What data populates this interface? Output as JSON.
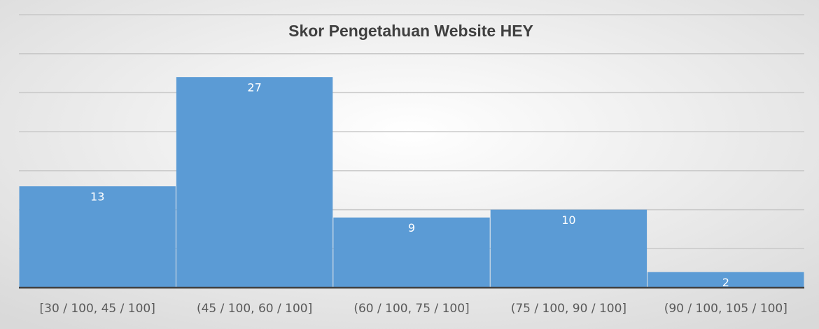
{
  "chart_data": {
    "type": "bar",
    "title": "Skor Pengetahuan Website HEY",
    "categories": [
      "[30 / 100, 45 / 100]",
      "(45 / 100, 60 / 100]",
      "(60 / 100, 75 / 100]",
      "(75 / 100, 90 / 100]",
      "(90 / 100, 105 / 100]"
    ],
    "values": [
      13,
      27,
      9,
      10,
      2
    ],
    "color": "#5b9bd5",
    "ylim": [
      0,
      35
    ],
    "yticks": [
      0,
      5,
      10,
      15,
      20,
      25,
      30,
      35
    ],
    "grid": true
  }
}
